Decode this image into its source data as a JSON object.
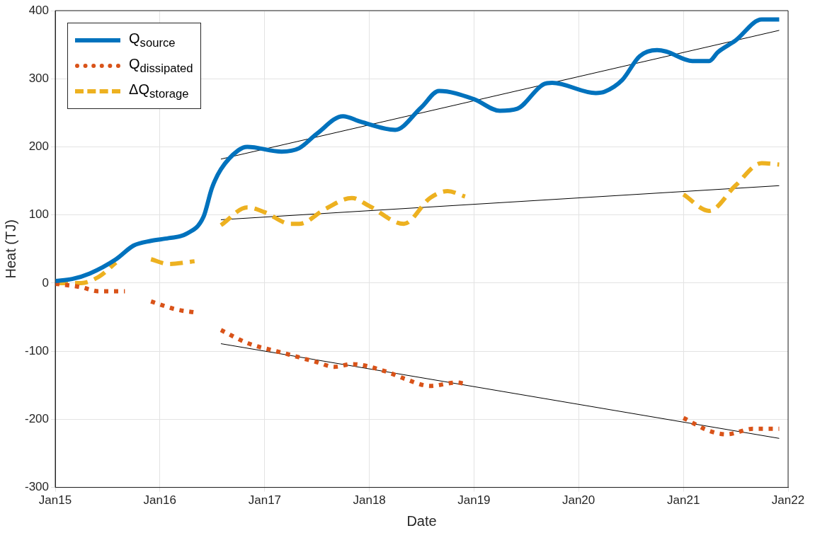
{
  "chart_data": {
    "type": "line",
    "xlabel": "Date",
    "ylabel": "Heat (TJ)",
    "xlim": [
      "2015-01",
      "2022-01"
    ],
    "xticks": [
      {
        "value": "2015-01",
        "label": "Jan15"
      },
      {
        "value": "2016-01",
        "label": "Jan16"
      },
      {
        "value": "2017-01",
        "label": "Jan17"
      },
      {
        "value": "2018-01",
        "label": "Jan18"
      },
      {
        "value": "2019-01",
        "label": "Jan19"
      },
      {
        "value": "2020-01",
        "label": "Jan20"
      },
      {
        "value": "2021-01",
        "label": "Jan21"
      },
      {
        "value": "2022-01",
        "label": "Jan22"
      }
    ],
    "ylim": [
      -300,
      400
    ],
    "yticks": [
      -300,
      -200,
      -100,
      0,
      100,
      200,
      300,
      400
    ],
    "grid": true,
    "legend": "top left",
    "series": [
      {
        "name": "Q$_{source}$",
        "color": "#0072bd",
        "line_style": "solid",
        "x": [
          "2015-01",
          "2015-03",
          "2015-05",
          "2015-08",
          "2015-10",
          "2015-12",
          "2016-02",
          "2016-04",
          "2016-06",
          "2016-07",
          "2016-08",
          "2016-10",
          "2016-11",
          "2017-03",
          "2017-05",
          "2017-07",
          "2017-10",
          "2017-12",
          "2018-04",
          "2018-07",
          "2018-09",
          "2019-01",
          "2019-04",
          "2019-06",
          "2019-09",
          "2019-10",
          "2020-03",
          "2020-04",
          "2020-06",
          "2020-08",
          "2020-10",
          "2020-11",
          "2021-02",
          "2021-04",
          "2021-05",
          "2021-07",
          "2021-10",
          "2021-12"
        ],
        "values": [
          3,
          6,
          14,
          35,
          55,
          62,
          66,
          72,
          97,
          140,
          167,
          195,
          200,
          193,
          198,
          219,
          245,
          237,
          225,
          258,
          282,
          270,
          253,
          256,
          292,
          294,
          279,
          281,
          298,
          333,
          342,
          340,
          326,
          326,
          339,
          356,
          387,
          387
        ]
      },
      {
        "name": "Q$_{dissipated}$",
        "color": "#d95319",
        "line_style": "dotted",
        "x": [
          "2015-01",
          "2015-04",
          "2015-06",
          "2015-09",
          "2015-11",
          "2015-12",
          "2016-03",
          "2016-05",
          "2016-07",
          "2016-08",
          "2016-11",
          "2017-03",
          "2017-07",
          "2017-09",
          "2017-11",
          "2018-03",
          "2018-05",
          "2018-08",
          "2018-11",
          "2018-12",
          "2019-06",
          "2021-01",
          "2021-04",
          "2021-06",
          "2021-09",
          "2021-12"
        ],
        "values": [
          -1,
          -6,
          -12,
          -12,
          null,
          -27,
          -39,
          -43,
          null,
          -69,
          -88,
          -102,
          -116,
          -123,
          -119,
          -130,
          -140,
          -151,
          -146,
          -148,
          null,
          -198,
          -217,
          -222,
          -214,
          -214
        ]
      },
      {
        "name": "ΔQ$_{storage}$",
        "color": "#edb120",
        "line_style": "dashed",
        "x": [
          "2015-01",
          "2015-04",
          "2015-06",
          "2015-08",
          "2015-10",
          "2015-12",
          "2016-02",
          "2016-05",
          "2016-07",
          "2016-08",
          "2016-11",
          "2017-01",
          "2017-04",
          "2017-05",
          "2017-08",
          "2017-11",
          "2018-01",
          "2018-05",
          "2018-08",
          "2018-10",
          "2018-12",
          "2019-06",
          "2021-01",
          "2021-04",
          "2021-07",
          "2021-10",
          "2021-12"
        ],
        "values": [
          0,
          0,
          9,
          30,
          null,
          35,
          28,
          32,
          null,
          85,
          111,
          104,
          87,
          87,
          109,
          125,
          113,
          87,
          125,
          135,
          127,
          null,
          130,
          106,
          143,
          176,
          174
        ]
      },
      {
        "type": "line",
        "color": "#000000",
        "line_style": "solid",
        "x": [
          "2016-08",
          "2021-12"
        ],
        "values": [
          182,
          371
        ]
      },
      {
        "type": "line",
        "color": "#000000",
        "line_style": "solid",
        "x": [
          "2016-08",
          "2021-12"
        ],
        "values": [
          93,
          143
        ]
      },
      {
        "type": "line",
        "color": "#000000",
        "line_style": "solid",
        "x": [
          "2016-08",
          "2021-12"
        ],
        "values": [
          -89,
          -228
        ]
      }
    ]
  }
}
